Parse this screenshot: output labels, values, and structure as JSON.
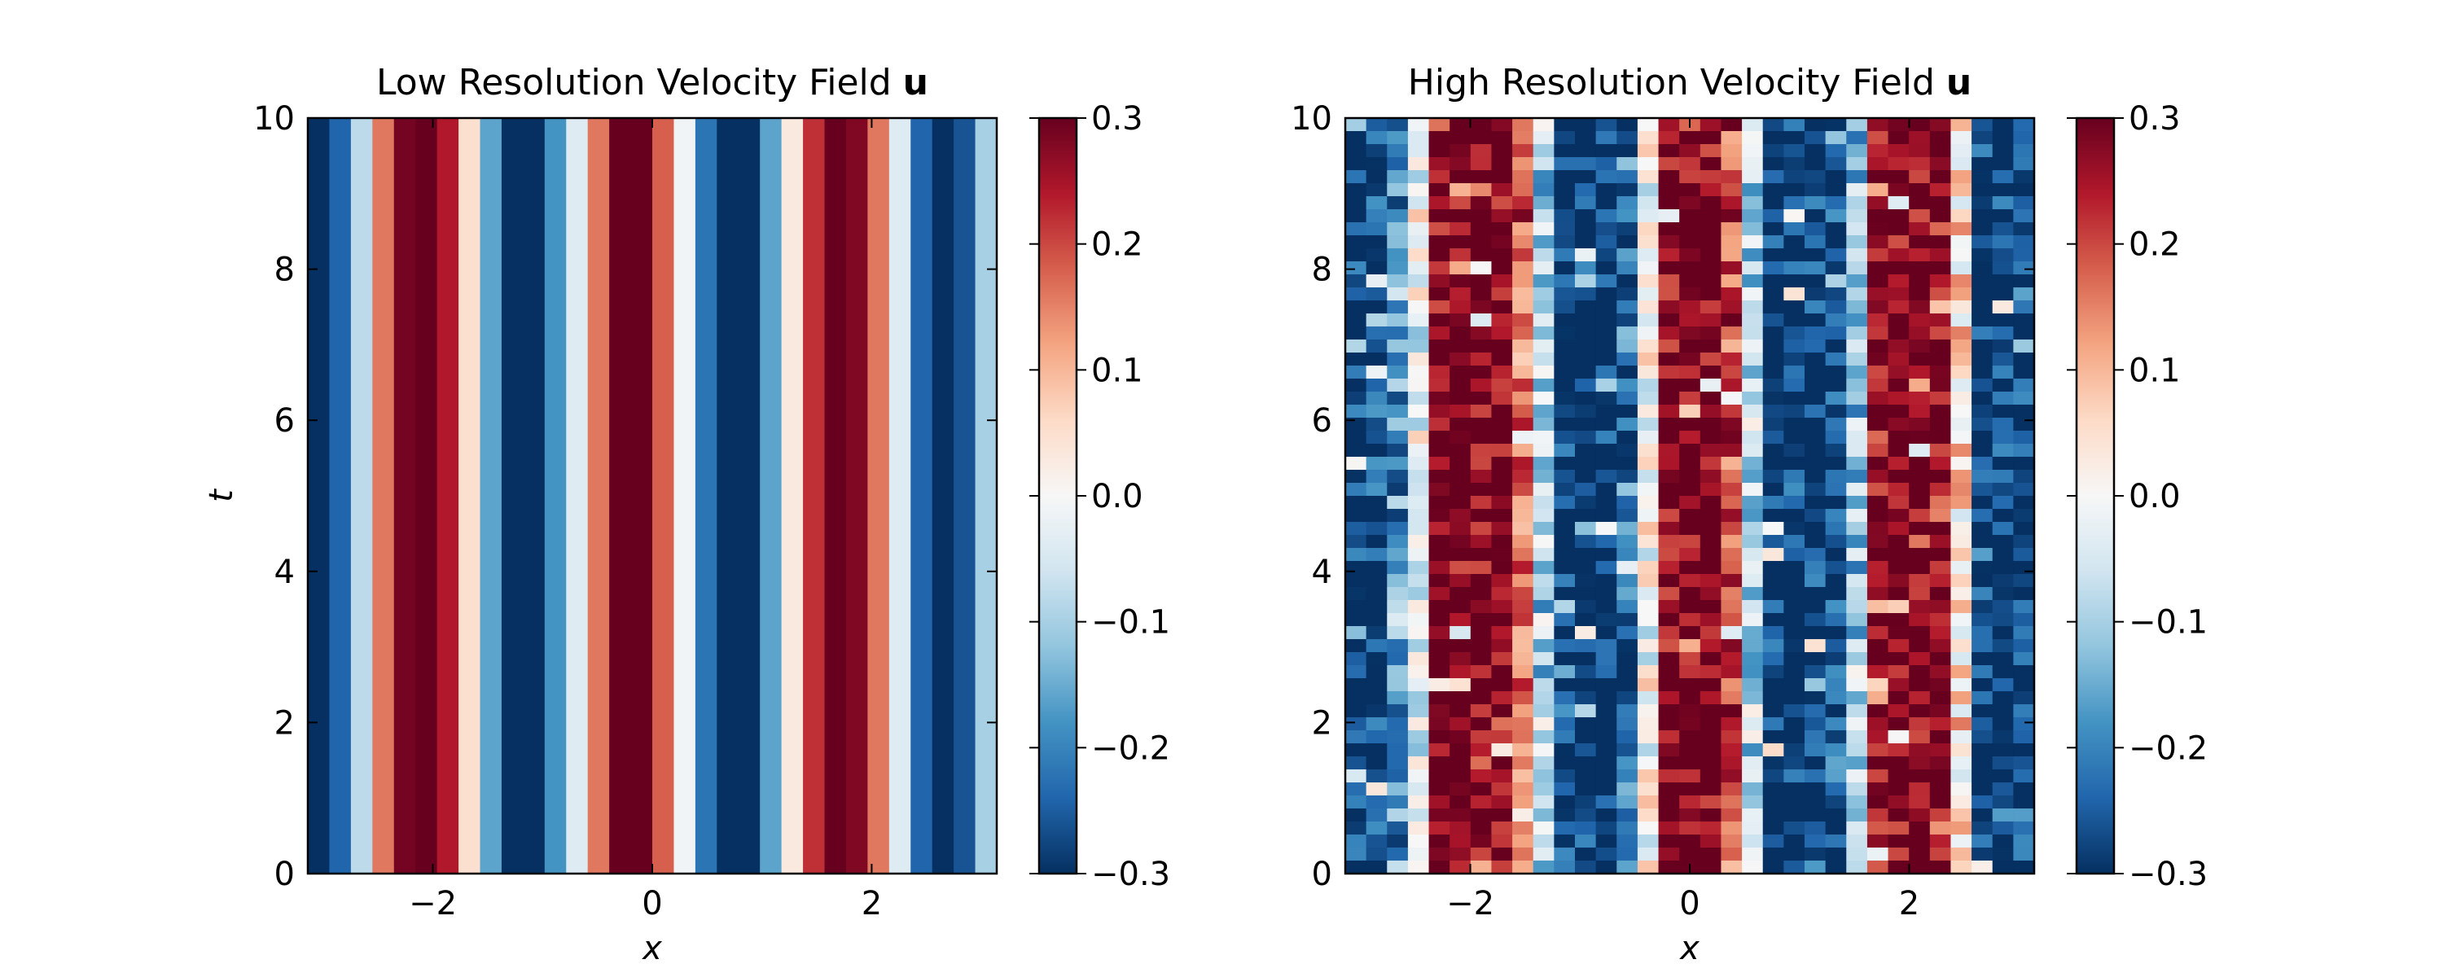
{
  "figure": {
    "panels": [
      {
        "title": "Low Resolution Velocity Field ",
        "title_bold": "u",
        "xlabel": "x",
        "ylabel": "t",
        "xtick_labels": [
          "−2",
          "0",
          "2"
        ],
        "ytick_labels": [
          "0",
          "2",
          "4",
          "6",
          "8",
          "10"
        ],
        "colorbar_tick_labels": [
          "0.3",
          "0.2",
          "0.1",
          "0.0",
          "−0.1",
          "−0.2",
          "−0.3"
        ]
      },
      {
        "title": "High Resolution Velocity Field ",
        "title_bold": "u",
        "xlabel": "x",
        "ylabel": "",
        "xtick_labels": [
          "−2",
          "0",
          "2"
        ],
        "ytick_labels": [
          "0",
          "2",
          "4",
          "6",
          "8",
          "10"
        ],
        "colorbar_tick_labels": [
          "0.3",
          "0.2",
          "0.1",
          "0.0",
          "−0.1",
          "−0.2",
          "−0.3"
        ]
      }
    ]
  },
  "chart_data": [
    {
      "type": "heatmap",
      "title": "Low Resolution Velocity Field u",
      "xlabel": "x",
      "ylabel": "t",
      "xlim": [
        -3.14,
        3.14
      ],
      "ylim": [
        0,
        10
      ],
      "xticks": [
        -2,
        0,
        2
      ],
      "yticks": [
        0,
        2,
        4,
        6,
        8,
        10
      ],
      "colormap": "RdBu_r",
      "clim": [
        -0.3,
        0.3
      ],
      "colorbar_ticks": [
        0.3,
        0.2,
        0.1,
        0.0,
        -0.1,
        -0.2,
        -0.3
      ],
      "grid": false,
      "description_values": "32 vertical stripes constant in t; u(x) per cell from left to right",
      "values": [
        -0.3,
        -0.24,
        -0.08,
        0.16,
        0.29,
        0.3,
        0.24,
        0.05,
        -0.16,
        -0.3,
        -0.3,
        -0.18,
        -0.04,
        0.16,
        0.3,
        0.3,
        0.18,
        -0.01,
        -0.22,
        -0.3,
        -0.3,
        -0.16,
        0.03,
        0.22,
        0.3,
        0.28,
        0.16,
        -0.04,
        -0.24,
        -0.3,
        -0.26,
        -0.1
      ]
    },
    {
      "type": "heatmap",
      "title": "High Resolution Velocity Field u",
      "xlabel": "x",
      "ylabel": "",
      "xlim": [
        -3.14,
        3.14
      ],
      "ylim": [
        0,
        10
      ],
      "xticks": [
        -2,
        0,
        2
      ],
      "yticks": [
        0,
        2,
        4,
        6,
        8,
        10
      ],
      "colormap": "RdBu_r",
      "clim": [
        -0.3,
        0.3
      ],
      "colorbar_ticks": [
        0.3,
        0.2,
        0.1,
        0.0,
        -0.1,
        -0.2,
        -0.3
      ],
      "grid": false,
      "description_values": "noisy saturated bands; base profile u(x) per column from left to right",
      "values": [
        -0.3,
        -0.28,
        -0.18,
        -0.02,
        0.3,
        0.3,
        0.3,
        0.3,
        0.18,
        -0.1,
        -0.3,
        -0.3,
        -0.3,
        -0.22,
        0.0,
        0.3,
        0.3,
        0.3,
        0.2,
        -0.08,
        -0.3,
        -0.3,
        -0.3,
        -0.26,
        -0.12,
        0.28,
        0.3,
        0.3,
        0.3,
        0.05,
        -0.3,
        -0.3,
        -0.3
      ]
    }
  ]
}
